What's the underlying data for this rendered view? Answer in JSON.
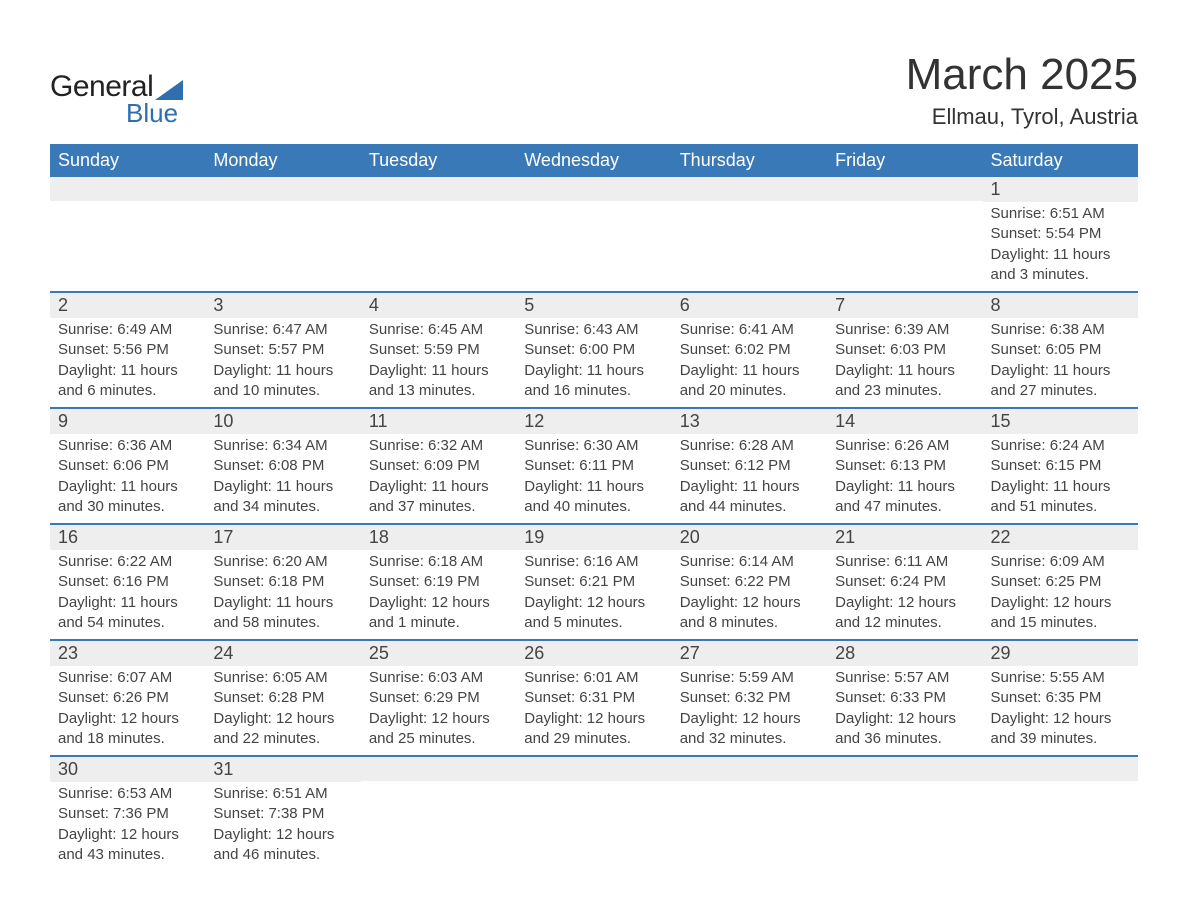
{
  "logo": {
    "text_general": "General",
    "text_blue": "Blue"
  },
  "title": "March 2025",
  "location": "Ellmau, Tyrol, Austria",
  "colors": {
    "header_bg": "#3a79b7",
    "header_text": "#ffffff",
    "row_divider": "#3a79b7",
    "daynum_bg": "#eeeeee",
    "body_text": "#444444",
    "logo_accent": "#2f6fb0",
    "background": "#ffffff"
  },
  "typography": {
    "title_fontsize_pt": 33,
    "location_fontsize_pt": 17,
    "header_fontsize_pt": 14,
    "daynum_fontsize_pt": 14,
    "body_fontsize_pt": 11,
    "font_family": "Arial"
  },
  "weekdays": [
    "Sunday",
    "Monday",
    "Tuesday",
    "Wednesday",
    "Thursday",
    "Friday",
    "Saturday"
  ],
  "weeks": [
    [
      {
        "n": "",
        "sunrise": "",
        "sunset": "",
        "daylight": ""
      },
      {
        "n": "",
        "sunrise": "",
        "sunset": "",
        "daylight": ""
      },
      {
        "n": "",
        "sunrise": "",
        "sunset": "",
        "daylight": ""
      },
      {
        "n": "",
        "sunrise": "",
        "sunset": "",
        "daylight": ""
      },
      {
        "n": "",
        "sunrise": "",
        "sunset": "",
        "daylight": ""
      },
      {
        "n": "",
        "sunrise": "",
        "sunset": "",
        "daylight": ""
      },
      {
        "n": "1",
        "sunrise": "Sunrise: 6:51 AM",
        "sunset": "Sunset: 5:54 PM",
        "daylight": "Daylight: 11 hours and 3 minutes."
      }
    ],
    [
      {
        "n": "2",
        "sunrise": "Sunrise: 6:49 AM",
        "sunset": "Sunset: 5:56 PM",
        "daylight": "Daylight: 11 hours and 6 minutes."
      },
      {
        "n": "3",
        "sunrise": "Sunrise: 6:47 AM",
        "sunset": "Sunset: 5:57 PM",
        "daylight": "Daylight: 11 hours and 10 minutes."
      },
      {
        "n": "4",
        "sunrise": "Sunrise: 6:45 AM",
        "sunset": "Sunset: 5:59 PM",
        "daylight": "Daylight: 11 hours and 13 minutes."
      },
      {
        "n": "5",
        "sunrise": "Sunrise: 6:43 AM",
        "sunset": "Sunset: 6:00 PM",
        "daylight": "Daylight: 11 hours and 16 minutes."
      },
      {
        "n": "6",
        "sunrise": "Sunrise: 6:41 AM",
        "sunset": "Sunset: 6:02 PM",
        "daylight": "Daylight: 11 hours and 20 minutes."
      },
      {
        "n": "7",
        "sunrise": "Sunrise: 6:39 AM",
        "sunset": "Sunset: 6:03 PM",
        "daylight": "Daylight: 11 hours and 23 minutes."
      },
      {
        "n": "8",
        "sunrise": "Sunrise: 6:38 AM",
        "sunset": "Sunset: 6:05 PM",
        "daylight": "Daylight: 11 hours and 27 minutes."
      }
    ],
    [
      {
        "n": "9",
        "sunrise": "Sunrise: 6:36 AM",
        "sunset": "Sunset: 6:06 PM",
        "daylight": "Daylight: 11 hours and 30 minutes."
      },
      {
        "n": "10",
        "sunrise": "Sunrise: 6:34 AM",
        "sunset": "Sunset: 6:08 PM",
        "daylight": "Daylight: 11 hours and 34 minutes."
      },
      {
        "n": "11",
        "sunrise": "Sunrise: 6:32 AM",
        "sunset": "Sunset: 6:09 PM",
        "daylight": "Daylight: 11 hours and 37 minutes."
      },
      {
        "n": "12",
        "sunrise": "Sunrise: 6:30 AM",
        "sunset": "Sunset: 6:11 PM",
        "daylight": "Daylight: 11 hours and 40 minutes."
      },
      {
        "n": "13",
        "sunrise": "Sunrise: 6:28 AM",
        "sunset": "Sunset: 6:12 PM",
        "daylight": "Daylight: 11 hours and 44 minutes."
      },
      {
        "n": "14",
        "sunrise": "Sunrise: 6:26 AM",
        "sunset": "Sunset: 6:13 PM",
        "daylight": "Daylight: 11 hours and 47 minutes."
      },
      {
        "n": "15",
        "sunrise": "Sunrise: 6:24 AM",
        "sunset": "Sunset: 6:15 PM",
        "daylight": "Daylight: 11 hours and 51 minutes."
      }
    ],
    [
      {
        "n": "16",
        "sunrise": "Sunrise: 6:22 AM",
        "sunset": "Sunset: 6:16 PM",
        "daylight": "Daylight: 11 hours and 54 minutes."
      },
      {
        "n": "17",
        "sunrise": "Sunrise: 6:20 AM",
        "sunset": "Sunset: 6:18 PM",
        "daylight": "Daylight: 11 hours and 58 minutes."
      },
      {
        "n": "18",
        "sunrise": "Sunrise: 6:18 AM",
        "sunset": "Sunset: 6:19 PM",
        "daylight": "Daylight: 12 hours and 1 minute."
      },
      {
        "n": "19",
        "sunrise": "Sunrise: 6:16 AM",
        "sunset": "Sunset: 6:21 PM",
        "daylight": "Daylight: 12 hours and 5 minutes."
      },
      {
        "n": "20",
        "sunrise": "Sunrise: 6:14 AM",
        "sunset": "Sunset: 6:22 PM",
        "daylight": "Daylight: 12 hours and 8 minutes."
      },
      {
        "n": "21",
        "sunrise": "Sunrise: 6:11 AM",
        "sunset": "Sunset: 6:24 PM",
        "daylight": "Daylight: 12 hours and 12 minutes."
      },
      {
        "n": "22",
        "sunrise": "Sunrise: 6:09 AM",
        "sunset": "Sunset: 6:25 PM",
        "daylight": "Daylight: 12 hours and 15 minutes."
      }
    ],
    [
      {
        "n": "23",
        "sunrise": "Sunrise: 6:07 AM",
        "sunset": "Sunset: 6:26 PM",
        "daylight": "Daylight: 12 hours and 18 minutes."
      },
      {
        "n": "24",
        "sunrise": "Sunrise: 6:05 AM",
        "sunset": "Sunset: 6:28 PM",
        "daylight": "Daylight: 12 hours and 22 minutes."
      },
      {
        "n": "25",
        "sunrise": "Sunrise: 6:03 AM",
        "sunset": "Sunset: 6:29 PM",
        "daylight": "Daylight: 12 hours and 25 minutes."
      },
      {
        "n": "26",
        "sunrise": "Sunrise: 6:01 AM",
        "sunset": "Sunset: 6:31 PM",
        "daylight": "Daylight: 12 hours and 29 minutes."
      },
      {
        "n": "27",
        "sunrise": "Sunrise: 5:59 AM",
        "sunset": "Sunset: 6:32 PM",
        "daylight": "Daylight: 12 hours and 32 minutes."
      },
      {
        "n": "28",
        "sunrise": "Sunrise: 5:57 AM",
        "sunset": "Sunset: 6:33 PM",
        "daylight": "Daylight: 12 hours and 36 minutes."
      },
      {
        "n": "29",
        "sunrise": "Sunrise: 5:55 AM",
        "sunset": "Sunset: 6:35 PM",
        "daylight": "Daylight: 12 hours and 39 minutes."
      }
    ],
    [
      {
        "n": "30",
        "sunrise": "Sunrise: 6:53 AM",
        "sunset": "Sunset: 7:36 PM",
        "daylight": "Daylight: 12 hours and 43 minutes."
      },
      {
        "n": "31",
        "sunrise": "Sunrise: 6:51 AM",
        "sunset": "Sunset: 7:38 PM",
        "daylight": "Daylight: 12 hours and 46 minutes."
      },
      {
        "n": "",
        "sunrise": "",
        "sunset": "",
        "daylight": ""
      },
      {
        "n": "",
        "sunrise": "",
        "sunset": "",
        "daylight": ""
      },
      {
        "n": "",
        "sunrise": "",
        "sunset": "",
        "daylight": ""
      },
      {
        "n": "",
        "sunrise": "",
        "sunset": "",
        "daylight": ""
      },
      {
        "n": "",
        "sunrise": "",
        "sunset": "",
        "daylight": ""
      }
    ]
  ]
}
